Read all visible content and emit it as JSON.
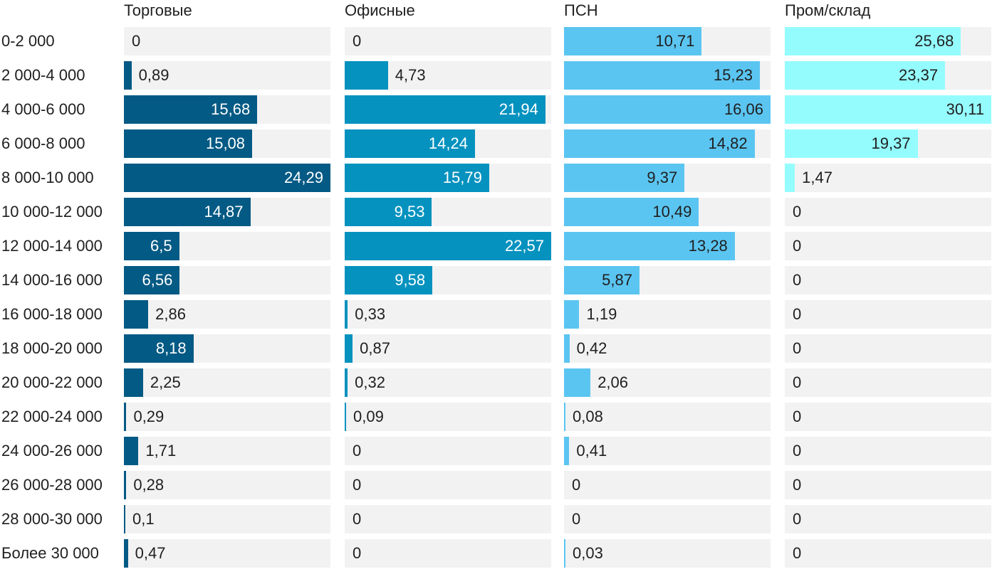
{
  "chart_data": {
    "type": "bar",
    "orientation": "horizontal",
    "layout": "small-multiples",
    "categories": [
      "0-2 000",
      "2 000-4 000",
      "4 000-6 000",
      "6 000-8 000",
      "8 000-10 000",
      "10 000-12 000",
      "12 000-14 000",
      "14 000-16 000",
      "16 000-18 000",
      "18 000-20 000",
      "20 000-22 000",
      "22 000-24 000",
      "24 000-26 000",
      "26 000-28 000",
      "28 000-30 000",
      "Более 30 000"
    ],
    "series": [
      {
        "name": "Торговые",
        "color": "#035a84",
        "label_inside_color": "#ffffff",
        "values": [
          0,
          0.89,
          15.68,
          15.08,
          24.29,
          14.87,
          6.5,
          6.56,
          2.86,
          8.18,
          2.25,
          0.29,
          1.71,
          0.28,
          0.1,
          0.47
        ],
        "labels": [
          "0",
          "0,89",
          "15,68",
          "15,08",
          "24,29",
          "14,87",
          "6,5",
          "6,56",
          "2,86",
          "8,18",
          "2,25",
          "0,29",
          "1,71",
          "0,28",
          "0,1",
          "0,47"
        ],
        "xlim": [
          0,
          24.29
        ]
      },
      {
        "name": "Офисные",
        "color": "#0592bf",
        "label_inside_color": "#ffffff",
        "values": [
          0,
          4.73,
          21.94,
          14.24,
          15.79,
          9.53,
          22.57,
          9.58,
          0.33,
          0.87,
          0.32,
          0.09,
          0,
          0,
          0,
          0
        ],
        "labels": [
          "0",
          "4,73",
          "21,94",
          "14,24",
          "15,79",
          "9,53",
          "22,57",
          "9,58",
          "0,33",
          "0,87",
          "0,32",
          "0,09",
          "0",
          "0",
          "0",
          "0"
        ],
        "xlim": [
          0,
          22.57
        ]
      },
      {
        "name": "ПСН",
        "color": "#5bc5f1",
        "label_inside_color": "#1f1f1f",
        "values": [
          10.71,
          15.23,
          16.06,
          14.82,
          9.37,
          10.49,
          13.28,
          5.87,
          1.19,
          0.42,
          2.06,
          0.08,
          0.41,
          0,
          0,
          0.03
        ],
        "labels": [
          "10,71",
          "15,23",
          "16,06",
          "14,82",
          "9,37",
          "10,49",
          "13,28",
          "5,87",
          "1,19",
          "0,42",
          "2,06",
          "0,08",
          "0,41",
          "0",
          "0",
          "0,03"
        ],
        "xlim": [
          0,
          16.06
        ]
      },
      {
        "name": "Пром/склад",
        "color": "#95fcfe",
        "label_inside_color": "#1f1f1f",
        "values": [
          25.68,
          23.37,
          30.11,
          19.37,
          1.47,
          0,
          0,
          0,
          0,
          0,
          0,
          0,
          0,
          0,
          0,
          0
        ],
        "labels": [
          "25,68",
          "23,37",
          "30,11",
          "19,37",
          "1,47",
          "0",
          "0",
          "0",
          "0",
          "0",
          "0",
          "0",
          "0",
          "0",
          "0",
          "0"
        ],
        "xlim": [
          0,
          30.11
        ]
      }
    ],
    "track_color": "#f2f2f2",
    "grid": false,
    "legend": "none"
  }
}
